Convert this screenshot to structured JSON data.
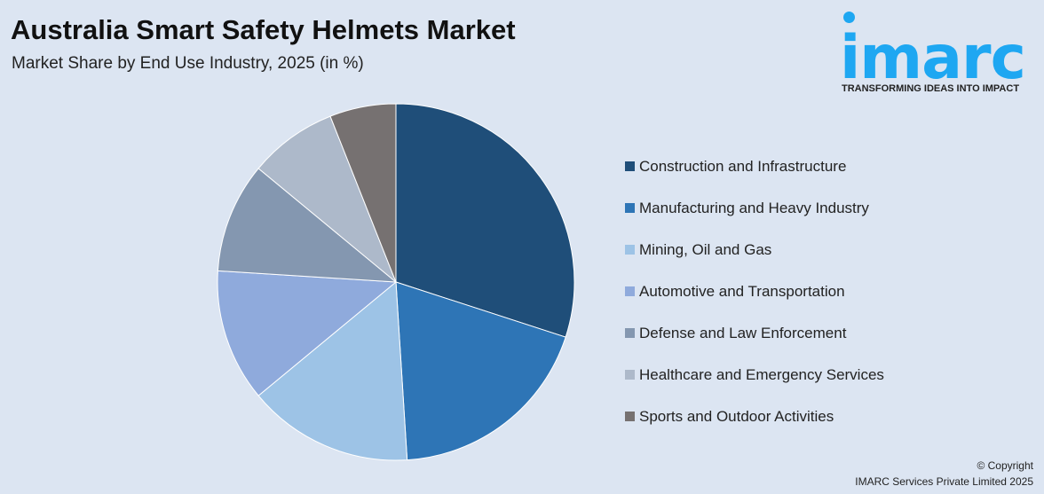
{
  "header": {
    "title": "Australia Smart Safety Helmets Market",
    "subtitle": "Market Share by End Use Industry, 2025 (in %)"
  },
  "logo": {
    "word": "imarc",
    "tagline": "TRANSFORMING IDEAS INTO IMPACT",
    "color": "#1ea7f2"
  },
  "chart_data": {
    "type": "pie",
    "title": "Australia Smart Safety Helmets Market",
    "subtitle": "Market Share by End Use Industry, 2025 (in %)",
    "legend_position": "right",
    "start_angle": "12 o'clock, clockwise",
    "slices": [
      {
        "label": "Construction and Infrastructure",
        "value": 30,
        "color": "#1f4e79"
      },
      {
        "label": "Manufacturing and Heavy Industry",
        "value": 19,
        "color": "#2e75b6"
      },
      {
        "label": "Mining, Oil and Gas",
        "value": 15,
        "color": "#9dc3e6"
      },
      {
        "label": "Automotive and Transportation",
        "value": 12,
        "color": "#8faadc"
      },
      {
        "label": "Defense and Law Enforcement",
        "value": 10,
        "color": "#8497b0"
      },
      {
        "label": "Healthcare and Emergency Services",
        "value": 8,
        "color": "#adb9ca"
      },
      {
        "label": "Sports and Outdoor Activities",
        "value": 6,
        "color": "#767171"
      }
    ]
  },
  "footer": {
    "copyright": "© Copyright",
    "company": "IMARC Services Private Limited 2025"
  }
}
